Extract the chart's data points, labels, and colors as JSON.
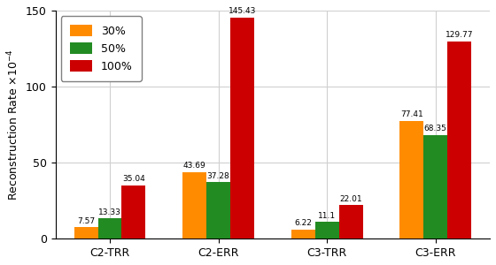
{
  "categories": [
    "C2-TRR",
    "C2-ERR",
    "C3-TRR",
    "C3-ERR"
  ],
  "series": {
    "30%": [
      7.57,
      43.69,
      6.22,
      77.41
    ],
    "50%": [
      13.33,
      37.28,
      11.1,
      68.35
    ],
    "100%": [
      35.04,
      145.43,
      22.01,
      129.77
    ]
  },
  "colors": {
    "30%": "#FF8C00",
    "50%": "#228B22",
    "100%": "#CC0000"
  },
  "ylabel": "Reconstruction Rate ×10⁻⁴",
  "ylim": [
    0,
    150
  ],
  "yticks": [
    0,
    50,
    100,
    150
  ],
  "legend_labels": [
    "30%",
    "50%",
    "100%"
  ],
  "bar_width": 0.22,
  "grid_color": "#d0d0d0",
  "label_fontsize": 9,
  "tick_fontsize": 9,
  "bar_label_fontsize": 6.5,
  "legend_fontsize": 9,
  "figsize": [
    5.6,
    3.0
  ],
  "dpi": 100
}
